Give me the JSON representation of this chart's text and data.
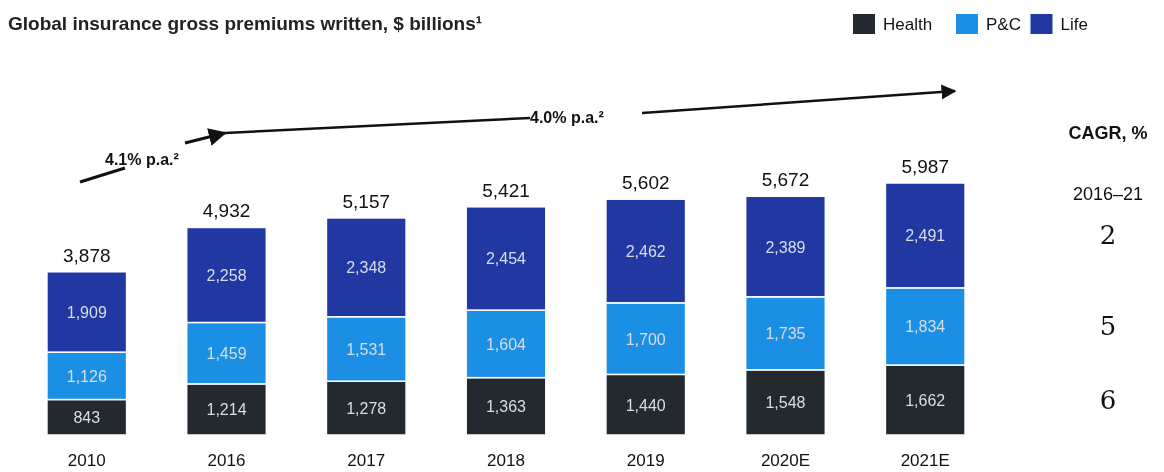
{
  "chart_data": {
    "type": "bar",
    "stacked": true,
    "title": "Global insurance gross premiums written, $ billions¹",
    "categories": [
      "2010",
      "2016",
      "2017",
      "2018",
      "2019",
      "2020E",
      "2021E"
    ],
    "series": [
      {
        "name": "Health",
        "color": "#23292f",
        "values": [
          843,
          1214,
          1278,
          1363,
          1440,
          1548,
          1662
        ],
        "value_labels": [
          "843",
          "1,214",
          "1,278",
          "1,363",
          "1,440",
          "1,548",
          "1,662"
        ]
      },
      {
        "name": "P&C",
        "color": "#1b8fe3",
        "values": [
          1126,
          1459,
          1531,
          1604,
          1700,
          1735,
          1834
        ],
        "value_labels": [
          "1,126",
          "1,459",
          "1,531",
          "1,604",
          "1,700",
          "1,735",
          "1,834"
        ]
      },
      {
        "name": "Life",
        "color": "#2138a3",
        "values": [
          1909,
          2258,
          2348,
          2454,
          2462,
          2389,
          2491
        ],
        "value_labels": [
          "1,909",
          "2,258",
          "2,348",
          "2,454",
          "2,462",
          "2,389",
          "2,491"
        ]
      }
    ],
    "totals": [
      "3,878",
      "4,932",
      "5,157",
      "5,421",
      "5,602",
      "5,672",
      "5,987"
    ],
    "legend": "top right",
    "annotations": [
      "4.1% p.a.²",
      "4.0% p.a.²",
      "CAGR, %",
      "2016–21",
      "2",
      "5",
      "6"
    ]
  }
}
